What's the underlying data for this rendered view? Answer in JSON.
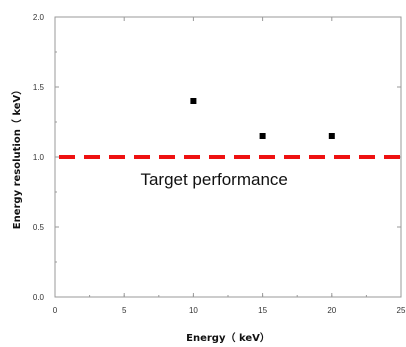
{
  "chart_data": {
    "type": "scatter",
    "xlabel": "Energy（ keV）",
    "ylabel": "Energy resolution（ keV）",
    "xlim": [
      0,
      25
    ],
    "ylim": [
      0,
      2.0
    ],
    "x_ticks": [
      "0",
      "5",
      "10",
      "15",
      "20",
      "25"
    ],
    "y_ticks": [
      "0.0",
      "0.5",
      "1.0",
      "1.5",
      "2.0"
    ],
    "grid": false,
    "series": [
      {
        "points": [
          {
            "x": 10,
            "y": 1.4
          },
          {
            "x": 15,
            "y": 1.15
          },
          {
            "x": 20,
            "y": 1.15
          }
        ],
        "marker": "square",
        "color": "#000000"
      }
    ],
    "reference_line": {
      "y": 1.0,
      "style": "dashed",
      "color": "#ee1111",
      "label": "Target performance"
    }
  }
}
